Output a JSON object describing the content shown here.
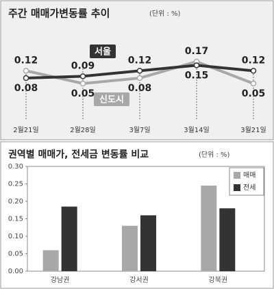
{
  "chart_data": [
    {
      "type": "line",
      "title": "주간 매매가변동률 추이",
      "unit": "(단위 : %)",
      "categories": [
        "2월21일",
        "2월28일",
        "3월7일",
        "3월14일",
        "3월21일"
      ],
      "series": [
        {
          "name": "서울",
          "color": "#333333",
          "values": [
            0.08,
            0.09,
            0.12,
            0.15,
            0.12
          ]
        },
        {
          "name": "신도시",
          "color": "#a8a8a8",
          "values": [
            0.12,
            0.05,
            0.08,
            0.17,
            0.05
          ]
        }
      ]
    },
    {
      "type": "bar",
      "title": "권역별 매매가, 전세금 변동률 비교",
      "unit": "(단위 : %)",
      "categories": [
        "강남권",
        "강서권",
        "강북권"
      ],
      "series": [
        {
          "name": "매매",
          "color": "#a8a8a8",
          "values": [
            0.06,
            0.13,
            0.245
          ]
        },
        {
          "name": "전세",
          "color": "#333333",
          "values": [
            0.185,
            0.16,
            0.18
          ]
        }
      ],
      "ylim": [
        0,
        0.3
      ],
      "yticks": [
        {
          "value": 0,
          "label": "0.00"
        },
        {
          "value": 0.05,
          "label": "0.05"
        },
        {
          "value": 0.1,
          "label": "0.10"
        },
        {
          "value": 0.15,
          "label": "0.15"
        },
        {
          "value": 0.2,
          "label": "0.20"
        },
        {
          "value": 0.25,
          "label": "0.25"
        },
        {
          "value": 0.3,
          "label": "0.30"
        }
      ],
      "legend": "top-right"
    }
  ]
}
